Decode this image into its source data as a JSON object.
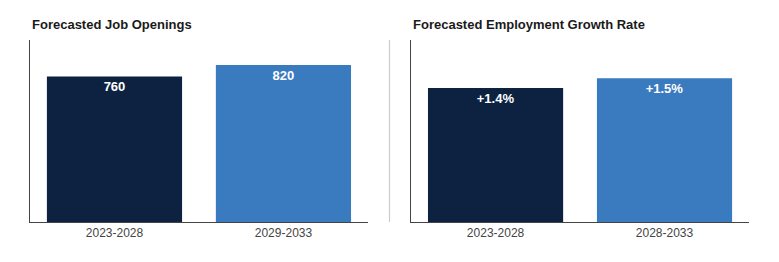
{
  "chart_data": [
    {
      "type": "bar",
      "title": "Forecasted Job Openings",
      "categories": [
        "2023-2028",
        "2029-2033"
      ],
      "values": [
        760,
        820
      ],
      "colors": [
        "#0d2240",
        "#3a7abf"
      ],
      "ylim": [
        0,
        950
      ],
      "tick_labels": "x",
      "grid": false,
      "data_labels": true
    },
    {
      "type": "bar",
      "title": "Forecasted Employment Growth Rate",
      "categories": [
        "2023-2028",
        "2028-2033"
      ],
      "values": [
        1.4,
        1.5
      ],
      "value_labels": [
        "+1.4%",
        "+1.5%"
      ],
      "colors": [
        "#0d2240",
        "#3a7abf"
      ],
      "ylim": [
        0,
        1.9
      ],
      "tick_labels": "x",
      "grid": false,
      "data_labels": true
    }
  ]
}
